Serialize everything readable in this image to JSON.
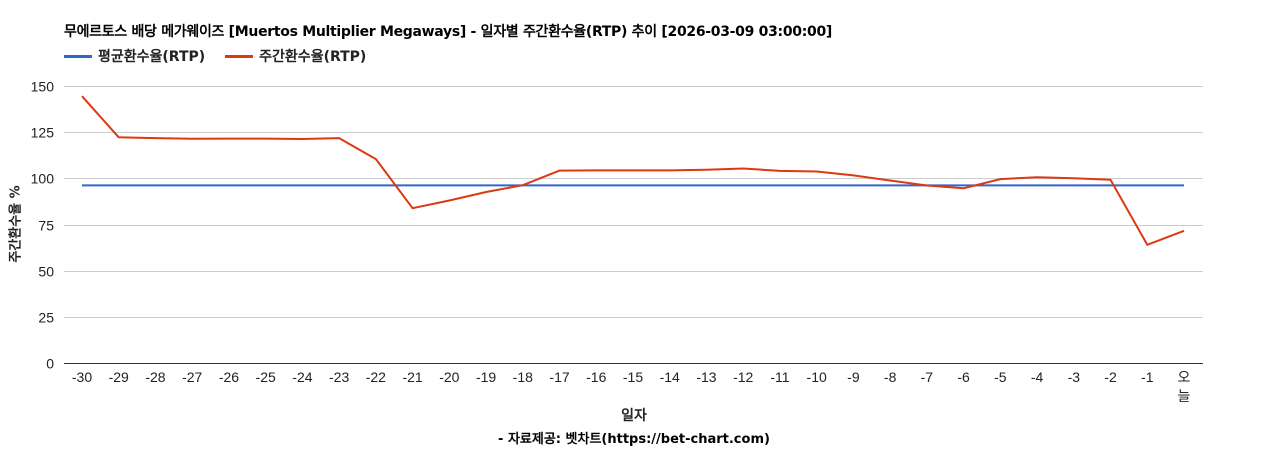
{
  "chart_data": {
    "type": "line",
    "title": "무에르토스 배당  메가웨이즈 [Muertos Multiplier Megaways] - 일자별 주간환수율(RTP) 추이 [2026-03-09 03:00:00]",
    "xlabel": "일자",
    "ylabel": "주간환수율 %",
    "ylim": [
      0,
      150
    ],
    "yticks": [
      0,
      25,
      50,
      75,
      100,
      125,
      150
    ],
    "grid": true,
    "legend_position": "top",
    "categories": [
      "-30",
      "-29",
      "-28",
      "-27",
      "-26",
      "-25",
      "-24",
      "-23",
      "-22",
      "-21",
      "-20",
      "-19",
      "-18",
      "-17",
      "-16",
      "-15",
      "-14",
      "-13",
      "-12",
      "-11",
      "-10",
      "-9",
      "-8",
      "-7",
      "-6",
      "-5",
      "-4",
      "-3",
      "-2",
      "-1",
      "오늘"
    ],
    "series": [
      {
        "name": "평균환수율(RTP)",
        "color": "#3366cc",
        "values": [
          96.2,
          96.2,
          96.2,
          96.2,
          96.2,
          96.2,
          96.2,
          96.2,
          96.2,
          96.2,
          96.2,
          96.2,
          96.2,
          96.2,
          96.2,
          96.2,
          96.2,
          96.2,
          96.2,
          96.2,
          96.2,
          96.2,
          96.2,
          96.2,
          96.2,
          96.2,
          96.2,
          96.2,
          96.2,
          96.2,
          96.2
        ]
      },
      {
        "name": "주간환수율(RTP)",
        "color": "#dc3912",
        "values": [
          144.5,
          122.2,
          121.8,
          121.4,
          121.5,
          121.5,
          121.3,
          121.8,
          110.4,
          83.8,
          88.0,
          92.6,
          96.3,
          104.2,
          104.3,
          104.3,
          104.3,
          104.6,
          105.3,
          104.0,
          103.7,
          101.6,
          98.8,
          96.1,
          94.6,
          99.6,
          100.6,
          100.0,
          99.2,
          64.0,
          71.6
        ]
      }
    ],
    "source": "- 자료제공: 벳차트(https://bet-chart.com)"
  },
  "legend": {
    "items": [
      {
        "label": "평균환수율(RTP)",
        "color": "#3366cc"
      },
      {
        "label": "주간환수율(RTP)",
        "color": "#dc3912"
      }
    ]
  }
}
